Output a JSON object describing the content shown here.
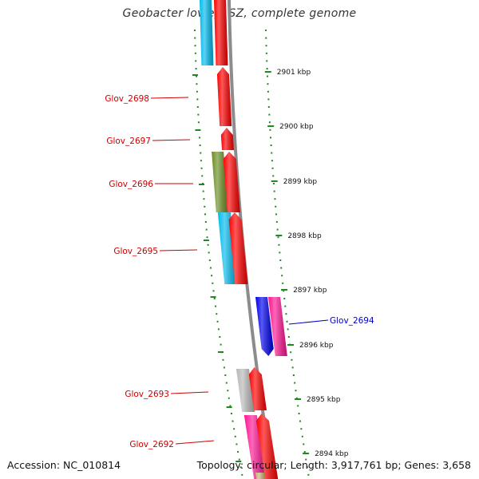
{
  "title": "Geobacter lovleyi SZ, complete genome",
  "footer": {
    "accession": "Accession: NC_010814",
    "topology": "Topology: circular; Length: 3,917,761 bp; Genes: 3,658"
  },
  "colors": {
    "backbone": "#8c8c8c",
    "tick": "#1e8a1e",
    "label_red": "#cc0000",
    "label_blue": "#0000cc"
  },
  "kbp_labels": [
    "2901 kbp",
    "2900 kbp",
    "2899 kbp",
    "2898 kbp",
    "2897 kbp",
    "2896 kbp",
    "2895 kbp",
    "2894 kbp"
  ],
  "genes": [
    {
      "name": "Glov_2698",
      "color": "#cc0000"
    },
    {
      "name": "Glov_2697",
      "color": "#cc0000"
    },
    {
      "name": "Glov_2696",
      "color": "#cc0000"
    },
    {
      "name": "Glov_2695",
      "color": "#cc0000"
    },
    {
      "name": "Glov_2694",
      "color": "#0000cc"
    },
    {
      "name": "Glov_2693",
      "color": "#cc0000"
    },
    {
      "name": "Glov_2692",
      "color": "#cc0000"
    }
  ],
  "feature_colors": {
    "red": "#ff0000",
    "cyan": "#00bbee",
    "olive": "#6b8e23",
    "blue": "#0000ee",
    "pink": "#ff1493",
    "gray": "#b8b8b8",
    "tan": "#c8b070"
  }
}
